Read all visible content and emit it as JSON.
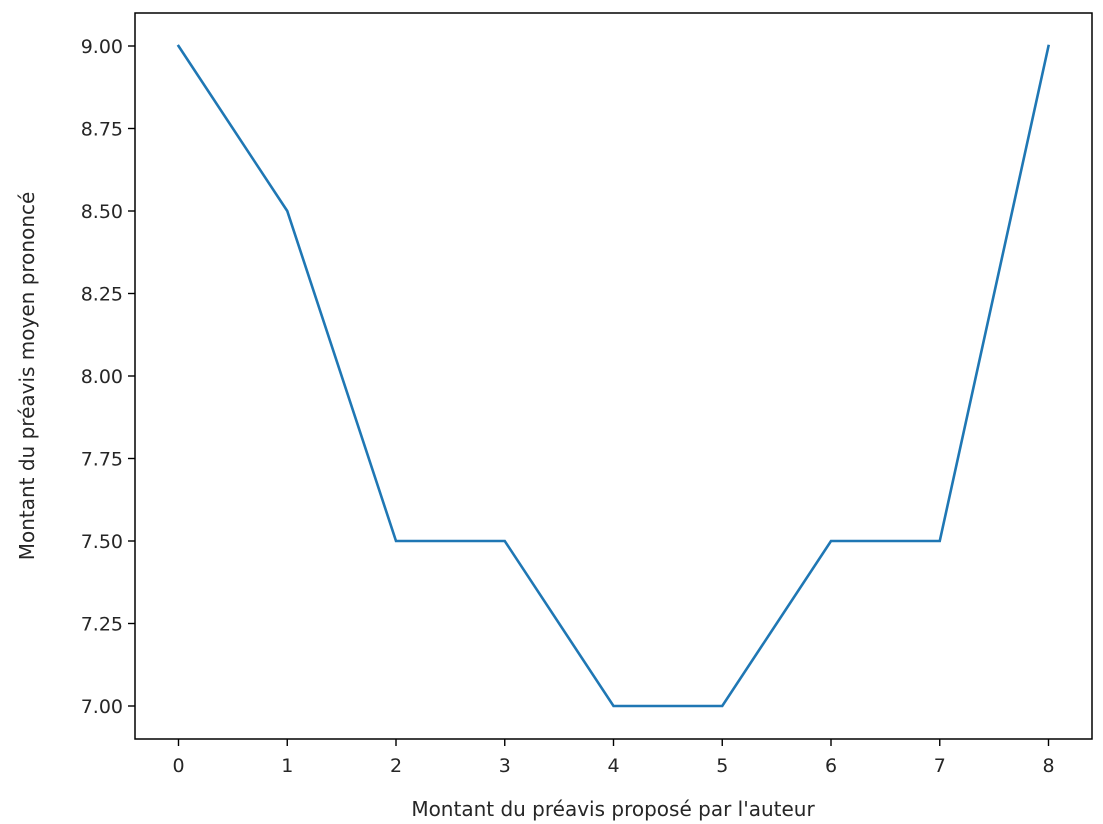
{
  "chart_data": {
    "type": "line",
    "title": "",
    "xlabel": "Montant du préavis proposé par l'auteur",
    "ylabel": "Montant du préavis moyen prononcé",
    "xlim": [
      -0.4,
      8.4
    ],
    "ylim": [
      6.9,
      9.1
    ],
    "x_ticks": [
      0,
      1,
      2,
      3,
      4,
      5,
      6,
      7,
      8
    ],
    "x_tick_labels": [
      "0",
      "1",
      "2",
      "3",
      "4",
      "5",
      "6",
      "7",
      "8"
    ],
    "y_ticks": [
      7.0,
      7.25,
      7.5,
      7.75,
      8.0,
      8.25,
      8.5,
      8.75,
      9.0
    ],
    "y_tick_labels": [
      "7.00",
      "7.25",
      "7.50",
      "7.75",
      "8.00",
      "8.25",
      "8.50",
      "8.75",
      "9.00"
    ],
    "grid": false,
    "series": [
      {
        "color": "#1f77b4",
        "x": [
          0,
          1,
          2,
          3,
          4,
          5,
          6,
          7,
          8
        ],
        "y": [
          9.0,
          8.5,
          7.5,
          7.5,
          7.0,
          7.0,
          7.5,
          7.5,
          9.0
        ]
      }
    ]
  }
}
